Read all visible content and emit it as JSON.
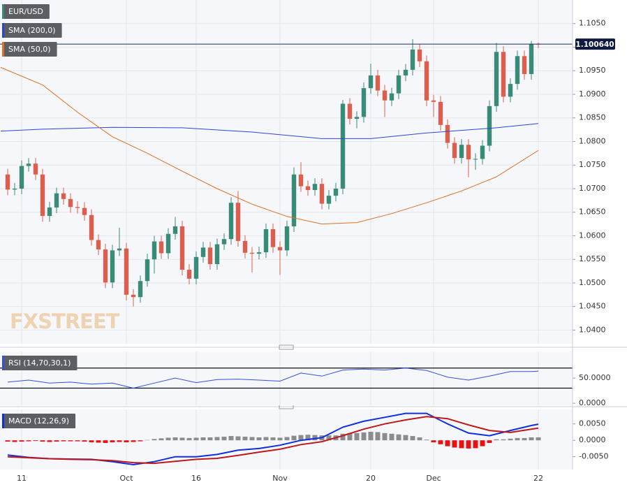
{
  "chart_data": [
    {
      "type": "candlestick",
      "title": "EUR/USD",
      "up_color": "#3a8a78",
      "down_color": "#d9604f",
      "open": [
        1.073,
        1.0698,
        1.07,
        1.0748,
        1.0753,
        1.073,
        1.0642,
        1.066,
        1.069,
        1.0678,
        1.0661,
        1.0659,
        1.0644,
        1.0591,
        1.0571,
        1.0501,
        1.0569,
        1.0573,
        1.0475,
        1.047,
        1.0504,
        1.055,
        1.0588,
        1.0563,
        1.0604,
        1.062,
        1.0528,
        1.0509,
        1.0555,
        1.0575,
        1.054,
        1.0582,
        1.0593,
        1.067,
        1.0589,
        1.0564,
        1.0562,
        1.0565,
        1.0614,
        1.0576,
        1.0569,
        1.062,
        1.073,
        1.0705,
        1.0697,
        1.071,
        1.0668,
        1.0685,
        1.07,
        1.088,
        1.0848,
        1.0852,
        1.0913,
        1.094,
        1.0908,
        1.0887,
        1.0902,
        1.094,
        1.0952,
        1.0995,
        1.097,
        1.0887,
        1.0884,
        1.0835,
        1.0797,
        1.0765,
        1.0793,
        1.0762,
        1.0763,
        1.0791,
        1.0875,
        1.099,
        1.0895,
        1.0922,
        1.0981,
        1.0943,
        1.1007
      ],
      "high": [
        1.0742,
        1.0712,
        1.076,
        1.0765,
        1.0765,
        1.0742,
        1.0672,
        1.0702,
        1.0702,
        1.069,
        1.0673,
        1.0671,
        1.0656,
        1.0603,
        1.0583,
        1.0581,
        1.0617,
        1.0585,
        1.0487,
        1.0516,
        1.0562,
        1.06,
        1.06,
        1.0616,
        1.064,
        1.0632,
        1.054,
        1.0567,
        1.0587,
        1.0587,
        1.0594,
        1.0605,
        1.0682,
        1.0695,
        1.0601,
        1.0576,
        1.0577,
        1.0626,
        1.0626,
        1.0588,
        1.0632,
        1.0745,
        1.0756,
        1.0717,
        1.0722,
        1.0722,
        1.0697,
        1.0712,
        1.0888,
        1.0892,
        1.0864,
        1.0925,
        1.0965,
        1.0952,
        1.092,
        1.0914,
        1.0952,
        1.0964,
        1.1017,
        1.1007,
        1.0982,
        1.0899,
        1.0896,
        1.0847,
        1.0809,
        1.0805,
        1.0805,
        1.0775,
        1.0803,
        1.0887,
        1.1009,
        1.1002,
        1.0934,
        1.0993,
        1.0993,
        1.1013,
        1.101
      ],
      "low": [
        1.0686,
        1.0686,
        1.0688,
        1.0736,
        1.0718,
        1.063,
        1.063,
        1.0648,
        1.0666,
        1.0649,
        1.0647,
        1.0632,
        1.0579,
        1.0559,
        1.0489,
        1.0489,
        1.0557,
        1.0463,
        1.045,
        1.0458,
        1.0492,
        1.052,
        1.0551,
        1.0551,
        1.0592,
        1.0516,
        1.0497,
        1.0497,
        1.0543,
        1.0528,
        1.0528,
        1.057,
        1.0581,
        1.0577,
        1.0552,
        1.0522,
        1.055,
        1.0553,
        1.0564,
        1.0517,
        1.0557,
        1.0608,
        1.0693,
        1.0685,
        1.0685,
        1.0656,
        1.0656,
        1.0673,
        1.0688,
        1.0836,
        1.0828,
        1.084,
        1.0901,
        1.0896,
        1.0852,
        1.0875,
        1.089,
        1.0928,
        1.094,
        1.0958,
        1.0875,
        1.0852,
        1.0823,
        1.0785,
        1.0753,
        1.0753,
        1.0724,
        1.074,
        1.0751,
        1.0779,
        1.0863,
        1.0883,
        1.0883,
        1.091,
        1.0931,
        1.0931,
        1.0998
      ],
      "close": [
        1.0698,
        1.07,
        1.0748,
        1.0753,
        1.073,
        1.0642,
        1.066,
        1.069,
        1.0678,
        1.0661,
        1.0659,
        1.0644,
        1.0591,
        1.0571,
        1.0501,
        1.0569,
        1.0573,
        1.0475,
        1.047,
        1.0504,
        1.055,
        1.0588,
        1.0563,
        1.0604,
        1.062,
        1.0528,
        1.0509,
        1.0555,
        1.0575,
        1.054,
        1.0582,
        1.0593,
        1.067,
        1.0589,
        1.0564,
        1.0562,
        1.0565,
        1.0614,
        1.0576,
        1.0569,
        1.062,
        1.073,
        1.0705,
        1.0697,
        1.071,
        1.0668,
        1.0685,
        1.07,
        1.088,
        1.0848,
        1.0852,
        1.0913,
        1.094,
        1.0908,
        1.0887,
        1.0902,
        1.094,
        1.0952,
        1.0995,
        1.097,
        1.0887,
        1.0884,
        1.0835,
        1.0797,
        1.0765,
        1.0793,
        1.0762,
        1.0763,
        1.0791,
        1.0875,
        1.099,
        1.0895,
        1.0922,
        1.0981,
        1.0943,
        1.1007,
        1.1006
      ],
      "series": [
        {
          "name": "SMA (200,0)",
          "color": "#2a46d8",
          "x": [
            -1,
            5,
            15,
            25,
            35,
            45,
            52,
            60,
            70,
            76
          ],
          "values": [
            1.0822,
            1.0826,
            1.083,
            1.0829,
            1.082,
            1.0806,
            1.0806,
            1.0818,
            1.0829,
            1.0838
          ]
        },
        {
          "name": "SMA (50,0)",
          "color": "#e07020",
          "x": [
            -1,
            5,
            10,
            15,
            20,
            25,
            30,
            35,
            40,
            45,
            50,
            55,
            60,
            65,
            70,
            76
          ],
          "values": [
            1.0957,
            1.092,
            1.0862,
            1.081,
            1.0775,
            1.0737,
            1.07,
            1.0667,
            1.0641,
            1.0625,
            1.0628,
            1.0647,
            1.067,
            1.0695,
            1.0725,
            1.0781
          ]
        }
      ],
      "last_price": {
        "value": 1.10064,
        "label": "1.100640"
      },
      "watermark": "FXSTREET",
      "xlim": [
        -1.1,
        80.9
      ],
      "xticks": [
        {
          "value": 2,
          "label": "11"
        },
        {
          "value": 17,
          "label": "Oct"
        },
        {
          "value": 27,
          "label": "16"
        },
        {
          "value": 39,
          "label": "Nov"
        },
        {
          "value": 52,
          "label": "20"
        },
        {
          "value": 61,
          "label": "Dec"
        },
        {
          "value": 76,
          "label": "22"
        }
      ],
      "ylim": [
        1.0371,
        1.11
      ],
      "yticks": [
        {
          "value": 1.105,
          "label": "1.1050"
        },
        {
          "value": 1.1,
          "label": "1.1000"
        },
        {
          "value": 1.095,
          "label": "1.0950"
        },
        {
          "value": 1.09,
          "label": "1.0900"
        },
        {
          "value": 1.085,
          "label": "1.0850"
        },
        {
          "value": 1.08,
          "label": "1.0800"
        },
        {
          "value": 1.075,
          "label": "1.0750"
        },
        {
          "value": 1.07,
          "label": "1.0700"
        },
        {
          "value": 1.065,
          "label": "1.0650"
        },
        {
          "value": 1.06,
          "label": "1.0600"
        },
        {
          "value": 1.055,
          "label": "1.0550"
        },
        {
          "value": 1.05,
          "label": "1.0500"
        },
        {
          "value": 1.045,
          "label": "1.0450"
        },
        {
          "value": 1.04,
          "label": "1.0400"
        }
      ],
      "grid": true
    },
    {
      "type": "line",
      "title": "RSI (14,70,30,1)",
      "series": [
        {
          "color": "#3050e0",
          "x": [
            0,
            3,
            6,
            9,
            12,
            15,
            18,
            21,
            24,
            27,
            30,
            33,
            36,
            39,
            42,
            45,
            48,
            51,
            54,
            57,
            60,
            63,
            66,
            69,
            72,
            75,
            76
          ],
          "values": [
            42,
            46,
            40,
            42,
            38,
            40,
            30,
            40,
            50,
            41,
            47,
            48,
            46,
            44,
            60,
            54,
            66,
            68,
            66,
            70,
            65,
            52,
            46,
            54,
            63,
            63,
            64
          ]
        }
      ],
      "levels": [
        70,
        30
      ],
      "ylim": [
        -4,
        103
      ],
      "yticks": [
        {
          "value": 50,
          "label": "50.0000"
        },
        {
          "value": 0,
          "label": "0.0000"
        }
      ],
      "grid": false
    },
    {
      "type": "macd",
      "title": "MACD (12,26,9)",
      "pos_color": "#8c8c8c",
      "neg_color": "#e81010",
      "histogram": [
        -0.0004,
        -0.0005,
        -0.0004,
        -0.0003,
        -0.0002,
        -0.0004,
        -0.0005,
        -0.0004,
        -0.0003,
        -0.0003,
        -0.0003,
        -0.0004,
        -0.0006,
        -0.0007,
        -0.0008,
        -0.0006,
        -0.0005,
        -0.0006,
        -0.0005,
        -0.0003,
        0.0001,
        0.0004,
        0.0006,
        0.0008,
        0.0009,
        0.0008,
        0.0007,
        0.0008,
        0.0009,
        0.0009,
        0.001,
        0.0011,
        0.0013,
        0.0012,
        0.0011,
        0.001,
        0.0009,
        0.001,
        0.0009,
        0.0008,
        0.001,
        0.0014,
        0.0016,
        0.0017,
        0.0016,
        0.0015,
        0.0015,
        0.0015,
        0.002,
        0.0022,
        0.0022,
        0.0024,
        0.0026,
        0.0025,
        0.0022,
        0.002,
        0.0018,
        0.0016,
        0.0013,
        0.0009,
        0.0002,
        -0.0006,
        -0.0012,
        -0.0018,
        -0.0022,
        -0.0024,
        -0.0025,
        -0.0024,
        -0.0018,
        -0.0008,
        0.0003,
        0.0003,
        0.0005,
        0.0007,
        0.0007,
        0.0009,
        0.0009
      ],
      "series": [
        {
          "color": "#1030e0",
          "x": [
            0,
            3,
            6,
            9,
            12,
            15,
            18,
            21,
            24,
            27,
            30,
            33,
            36,
            39,
            42,
            45,
            48,
            51,
            54,
            57,
            60,
            63,
            66,
            69,
            72,
            75,
            76
          ],
          "values": [
            -0.0045,
            -0.0052,
            -0.0056,
            -0.0057,
            -0.0058,
            -0.0065,
            -0.0074,
            -0.0065,
            -0.005,
            -0.005,
            -0.0043,
            -0.003,
            -0.0025,
            -0.0015,
            0.0,
            0.0008,
            0.004,
            0.0058,
            0.007,
            0.0082,
            0.0082,
            0.005,
            0.0022,
            0.0014,
            0.003,
            0.0045,
            0.0049
          ]
        },
        {
          "color": "#c01818",
          "x": [
            0,
            3,
            6,
            9,
            12,
            15,
            18,
            21,
            24,
            27,
            30,
            33,
            36,
            39,
            42,
            45,
            48,
            51,
            54,
            57,
            60,
            63,
            66,
            69,
            72,
            75,
            76
          ],
          "values": [
            -0.005,
            -0.0053,
            -0.0056,
            -0.0058,
            -0.0059,
            -0.0062,
            -0.0068,
            -0.007,
            -0.0064,
            -0.0058,
            -0.0055,
            -0.0046,
            -0.0036,
            -0.0027,
            -0.0013,
            -0.0004,
            0.0014,
            0.0034,
            0.005,
            0.0062,
            0.0072,
            0.0066,
            0.0047,
            0.003,
            0.0024,
            0.0034,
            0.0037
          ]
        }
      ],
      "ylim": [
        -0.0089,
        0.0094
      ],
      "yticks": [
        {
          "value": 0.005,
          "label": "0.0050"
        },
        {
          "value": 0,
          "label": "0.0000"
        },
        {
          "value": -0.005,
          "label": "-0.0050"
        }
      ],
      "grid": false
    }
  ]
}
